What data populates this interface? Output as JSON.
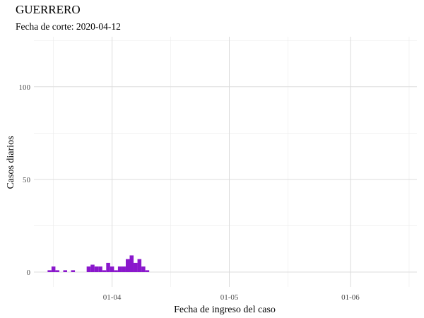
{
  "chart_data": {
    "type": "bar",
    "title": "GUERRERO",
    "subtitle": "Fecha de corte: 2020-04-12",
    "xlabel": "Fecha de ingreso del caso",
    "ylabel": "Casos diarios",
    "bar_color": "#8A18CC",
    "x_type": "date",
    "xlim": [
      "2020-03-12",
      "2020-06-18"
    ],
    "ylim": [
      -8,
      127
    ],
    "x_ticks": [
      {
        "date": "2020-04-01",
        "label": "01-04"
      },
      {
        "date": "2020-05-01",
        "label": "01-05"
      },
      {
        "date": "2020-06-01",
        "label": "01-06"
      }
    ],
    "x_minor_ticks": [
      "2020-03-17",
      "2020-04-16",
      "2020-05-16",
      "2020-06-16"
    ],
    "y_ticks": [
      0,
      50,
      100
    ],
    "y_minor_ticks": [
      25,
      75,
      125
    ],
    "grid": true,
    "bars": [
      {
        "date": "2020-03-16",
        "value": 1
      },
      {
        "date": "2020-03-17",
        "value": 3
      },
      {
        "date": "2020-03-18",
        "value": 1
      },
      {
        "date": "2020-03-20",
        "value": 1
      },
      {
        "date": "2020-03-22",
        "value": 1
      },
      {
        "date": "2020-03-26",
        "value": 3
      },
      {
        "date": "2020-03-27",
        "value": 4
      },
      {
        "date": "2020-03-28",
        "value": 3
      },
      {
        "date": "2020-03-29",
        "value": 3
      },
      {
        "date": "2020-03-30",
        "value": 1
      },
      {
        "date": "2020-03-31",
        "value": 5
      },
      {
        "date": "2020-04-01",
        "value": 3
      },
      {
        "date": "2020-04-02",
        "value": 1
      },
      {
        "date": "2020-04-03",
        "value": 3
      },
      {
        "date": "2020-04-04",
        "value": 3
      },
      {
        "date": "2020-04-05",
        "value": 7
      },
      {
        "date": "2020-04-06",
        "value": 9
      },
      {
        "date": "2020-04-07",
        "value": 5
      },
      {
        "date": "2020-04-08",
        "value": 7
      },
      {
        "date": "2020-04-09",
        "value": 3
      },
      {
        "date": "2020-04-10",
        "value": 1
      }
    ]
  }
}
